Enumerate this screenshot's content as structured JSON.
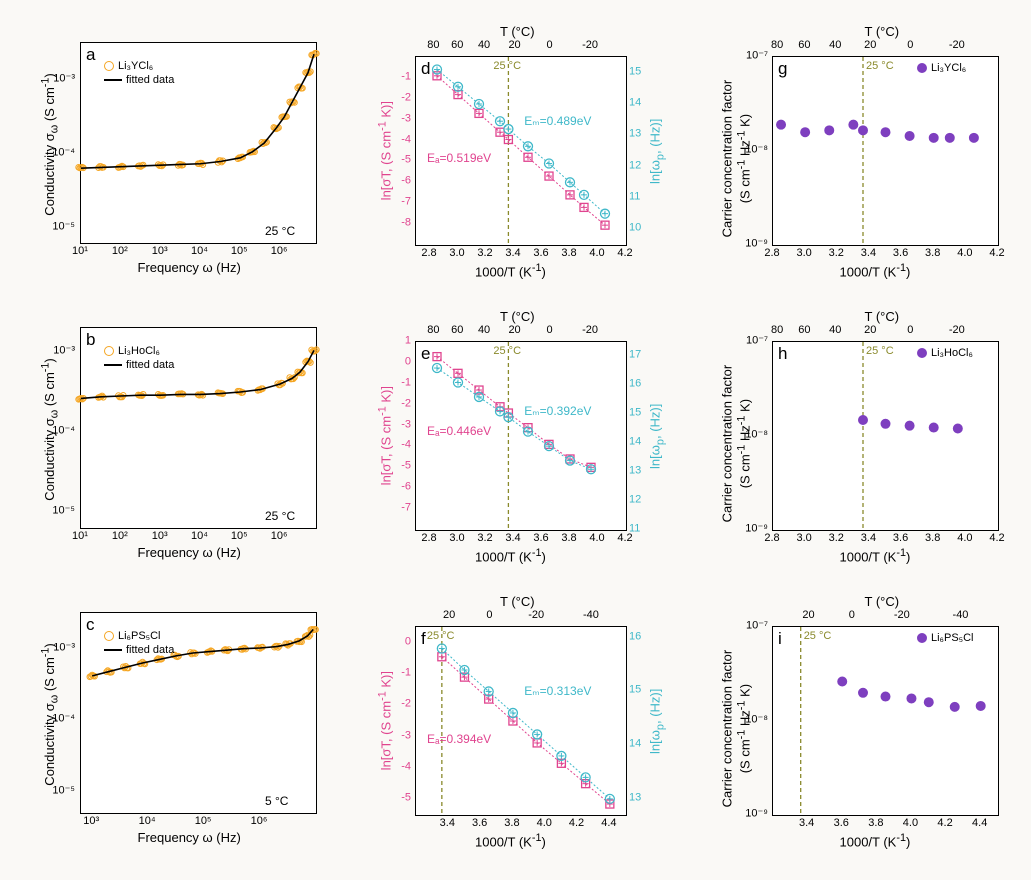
{
  "colors": {
    "bg": "#faf9f6",
    "panel_bg": "#ffffff",
    "axis": "#000000",
    "orange": "#f5a623",
    "black": "#000000",
    "magenta": "#e0448f",
    "cyan": "#3fb8c9",
    "purple": "#7e3fbf",
    "olive": "#8a8a2c"
  },
  "panel_labels": [
    "a",
    "b",
    "c",
    "d",
    "e",
    "f",
    "g",
    "h",
    "i"
  ],
  "col1": {
    "xlabel": "Frequency ω (Hz)",
    "ylabel": "Conductivity σ_ω (S cm⁻¹)",
    "legend_data": "fitted data",
    "a": {
      "material": "Li₃YCl₆",
      "temp": "25 °C",
      "xticks": [
        "10¹",
        "10²",
        "10³",
        "10⁴",
        "10⁵",
        "10⁶"
      ],
      "yticks": [
        "10⁻⁵",
        "10⁻⁴",
        "10⁻³"
      ],
      "ylim_log": [
        -5.2,
        -2.5
      ],
      "xlim_log": [
        1,
        6.9
      ],
      "data_x_log": [
        1,
        1.5,
        2,
        2.5,
        3,
        3.5,
        4,
        4.5,
        5,
        5.3,
        5.6,
        5.9,
        6.1,
        6.3,
        6.5,
        6.7,
        6.85
      ],
      "data_y_log": [
        -4.19,
        -4.18,
        -4.17,
        -4.16,
        -4.15,
        -4.14,
        -4.13,
        -4.1,
        -4.05,
        -3.97,
        -3.85,
        -3.65,
        -3.5,
        -3.3,
        -3.1,
        -2.9,
        -2.65
      ],
      "marker_color": "#f5a623"
    },
    "b": {
      "material": "Li₃HoCl₆",
      "temp": "25 °C",
      "xticks": [
        "10¹",
        "10²",
        "10³",
        "10⁴",
        "10⁵",
        "10⁶"
      ],
      "yticks": [
        "10⁻⁵",
        "10⁻⁴",
        "10⁻³"
      ],
      "ylim_log": [
        -5.2,
        -2.7
      ],
      "xlim_log": [
        1,
        6.9
      ],
      "data_x_log": [
        1,
        1.5,
        2,
        2.5,
        3,
        3.5,
        4,
        4.5,
        5,
        5.5,
        6,
        6.3,
        6.5,
        6.7,
        6.85
      ],
      "data_y_log": [
        -3.58,
        -3.56,
        -3.55,
        -3.54,
        -3.54,
        -3.53,
        -3.53,
        -3.52,
        -3.5,
        -3.47,
        -3.4,
        -3.33,
        -3.25,
        -3.12,
        -2.98
      ],
      "marker_color": "#f5a623"
    },
    "c": {
      "material": "Li₆PS₅Cl",
      "temp": "5 °C",
      "xticks": [
        "10³",
        "10⁴",
        "10⁵",
        "10⁶"
      ],
      "yticks": [
        "10⁻⁵",
        "10⁻⁴",
        "10⁻³"
      ],
      "ylim_log": [
        -5.3,
        -2.5
      ],
      "xlim_log": [
        2.8,
        7.0
      ],
      "data_x_log": [
        3,
        3.3,
        3.6,
        3.9,
        4.2,
        4.5,
        4.8,
        5.1,
        5.4,
        5.7,
        6.0,
        6.3,
        6.5,
        6.7,
        6.85,
        6.95
      ],
      "data_y_log": [
        -3.38,
        -3.32,
        -3.26,
        -3.2,
        -3.15,
        -3.1,
        -3.06,
        -3.04,
        -3.02,
        -3.0,
        -2.99,
        -2.97,
        -2.94,
        -2.89,
        -2.82,
        -2.73
      ],
      "marker_color": "#f5a623"
    }
  },
  "col2": {
    "xlabel": "1000/T (K⁻¹)",
    "xlabel_top": "T (°C)",
    "ylabel_left": "ln[σT, (S cm⁻¹ K)]",
    "ylabel_right": "ln[ω_p, (Hz)]",
    "temp_marker": "25 °C",
    "d": {
      "xlim": [
        2.7,
        4.2
      ],
      "ylim_left": [
        -9,
        0
      ],
      "ylim_right": [
        9.5,
        15.5
      ],
      "xticks": [
        "2.8",
        "3.0",
        "3.2",
        "3.4",
        "3.6",
        "3.8",
        "4.0",
        "4.2"
      ],
      "xticks_top_vals": [
        80,
        60,
        40,
        20,
        0,
        -20
      ],
      "yticks_left": [
        "-8",
        "-7",
        "-6",
        "-5",
        "-4",
        "-3",
        "-2",
        "-1"
      ],
      "yticks_right": [
        "10",
        "11",
        "12",
        "13",
        "14",
        "15"
      ],
      "Ea": "Eₐ=0.519eV",
      "Em": "Eₘ=0.489eV",
      "magenta_x": [
        2.85,
        3.0,
        3.15,
        3.3,
        3.36,
        3.5,
        3.65,
        3.8,
        3.9,
        4.05
      ],
      "magenta_y": [
        -0.9,
        -1.8,
        -2.7,
        -3.6,
        -3.95,
        -4.8,
        -5.7,
        -6.6,
        -7.2,
        -8.05
      ],
      "cyan_x": [
        2.85,
        3.0,
        3.15,
        3.3,
        3.36,
        3.5,
        3.65,
        3.8,
        3.9,
        4.05
      ],
      "cyan_y": [
        15.1,
        14.55,
        14.0,
        13.45,
        13.2,
        12.65,
        12.1,
        11.5,
        11.1,
        10.5
      ],
      "temp_line_x": 3.36
    },
    "e": {
      "xlim": [
        2.7,
        4.2
      ],
      "ylim_left": [
        -8,
        1
      ],
      "ylim_right": [
        11,
        17.5
      ],
      "xticks": [
        "2.8",
        "3.0",
        "3.2",
        "3.4",
        "3.6",
        "3.8",
        "4.0",
        "4.2"
      ],
      "xticks_top_vals": [
        80,
        60,
        40,
        20,
        0,
        -20
      ],
      "yticks_left": [
        "-7",
        "-6",
        "-5",
        "-4",
        "-3",
        "-2",
        "-1",
        "0",
        "1"
      ],
      "yticks_right": [
        "11",
        "12",
        "13",
        "14",
        "15",
        "16",
        "17"
      ],
      "Ea": "Eₐ=0.446eV",
      "Em": "Eₘ=0.392eV",
      "magenta_x": [
        2.85,
        3.0,
        3.15,
        3.3,
        3.36,
        3.5,
        3.65,
        3.8,
        3.95
      ],
      "magenta_y": [
        0.3,
        -0.5,
        -1.3,
        -2.1,
        -2.4,
        -3.1,
        -3.9,
        -4.6,
        -5.0
      ],
      "cyan_x": [
        2.85,
        3.0,
        3.15,
        3.3,
        3.36,
        3.5,
        3.65,
        3.8,
        3.95
      ],
      "cyan_y": [
        16.6,
        16.1,
        15.6,
        15.1,
        14.9,
        14.4,
        13.9,
        13.4,
        13.1
      ],
      "temp_line_x": 3.36
    },
    "f": {
      "xlim": [
        3.2,
        4.5
      ],
      "ylim_left": [
        -5.5,
        0.5
      ],
      "ylim_right": [
        12.7,
        16.2
      ],
      "xticks": [
        "3.4",
        "3.6",
        "3.8",
        "4.0",
        "4.2",
        "4.4"
      ],
      "xticks_top_vals": [
        20,
        0,
        -20,
        -40
      ],
      "yticks_left": [
        "-5",
        "-4",
        "-3",
        "-2",
        "-1",
        "0"
      ],
      "yticks_right": [
        "13",
        "14",
        "15",
        "16"
      ],
      "Ea": "Eₐ=0.394eV",
      "Em": "Eₘ=0.313eV",
      "magenta_x": [
        3.36,
        3.5,
        3.65,
        3.8,
        3.95,
        4.1,
        4.25,
        4.4
      ],
      "magenta_y": [
        -0.45,
        -1.1,
        -1.8,
        -2.5,
        -3.2,
        -3.85,
        -4.5,
        -5.15
      ],
      "cyan_x": [
        3.36,
        3.5,
        3.65,
        3.8,
        3.95,
        4.1,
        4.25,
        4.4
      ],
      "cyan_y": [
        15.8,
        15.4,
        15.0,
        14.6,
        14.2,
        13.8,
        13.4,
        13.0
      ],
      "temp_line_x": 3.36
    }
  },
  "col3": {
    "xlabel": "1000/T (K⁻¹)",
    "xlabel_top": "T (°C)",
    "ylabel": "Carrier concentration factor\n(S cm⁻¹ Hz⁻¹ K)",
    "temp_marker": "25 °C",
    "g": {
      "material": "Li₃YCl₆",
      "xlim": [
        2.8,
        4.2
      ],
      "ylim_log": [
        -9,
        -7
      ],
      "xticks": [
        "2.8",
        "3.0",
        "3.2",
        "3.4",
        "3.6",
        "3.8",
        "4.0",
        "4.2"
      ],
      "xticks_top_vals": [
        80,
        60,
        40,
        20,
        0,
        -20
      ],
      "yticks": [
        "10⁻⁹",
        "10⁻⁸",
        "10⁻⁷"
      ],
      "data_x": [
        2.85,
        3.0,
        3.15,
        3.3,
        3.36,
        3.5,
        3.65,
        3.8,
        3.9,
        4.05
      ],
      "data_y_log": [
        -7.72,
        -7.8,
        -7.78,
        -7.72,
        -7.78,
        -7.8,
        -7.84,
        -7.86,
        -7.86,
        -7.86
      ],
      "temp_line_x": 3.36
    },
    "h": {
      "material": "Li₃HoCl₆",
      "xlim": [
        2.8,
        4.2
      ],
      "ylim_log": [
        -9,
        -7
      ],
      "xticks": [
        "2.8",
        "3.0",
        "3.2",
        "3.4",
        "3.6",
        "3.8",
        "4.0",
        "4.2"
      ],
      "xticks_top_vals": [
        80,
        60,
        40,
        20,
        0,
        -20
      ],
      "yticks": [
        "10⁻⁹",
        "10⁻⁸",
        "10⁻⁷"
      ],
      "data_x": [
        3.36,
        3.5,
        3.65,
        3.8,
        3.95
      ],
      "data_y_log": [
        -7.83,
        -7.87,
        -7.89,
        -7.91,
        -7.92
      ],
      "temp_line_x": 3.36
    },
    "i": {
      "material": "Li₆PS₅Cl",
      "xlim": [
        3.2,
        4.5
      ],
      "ylim_log": [
        -9,
        -7
      ],
      "xticks": [
        "3.4",
        "3.6",
        "3.8",
        "4.0",
        "4.2",
        "4.4"
      ],
      "xticks_top_vals": [
        20,
        0,
        -20,
        -40
      ],
      "yticks": [
        "10⁻⁹",
        "10⁻⁸",
        "10⁻⁷"
      ],
      "data_x": [
        3.6,
        3.72,
        3.85,
        4.0,
        4.1,
        4.25,
        4.4
      ],
      "data_y_log": [
        -7.58,
        -7.7,
        -7.74,
        -7.76,
        -7.8,
        -7.85,
        -7.84
      ],
      "temp_line_x": 3.36
    }
  }
}
